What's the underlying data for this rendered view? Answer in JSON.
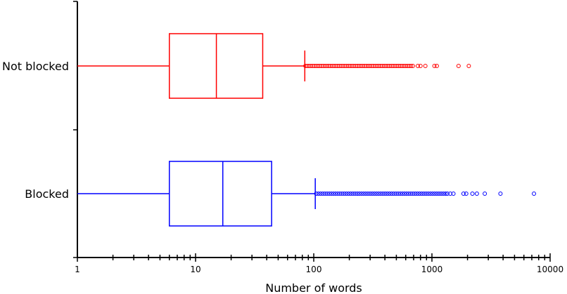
{
  "chart_data": {
    "type": "boxplot",
    "orientation": "horizontal",
    "xlabel": "Number of words",
    "x_scale": "log",
    "xlim": [
      1,
      10000
    ],
    "x_ticks": [
      1,
      10,
      100,
      1000,
      10000
    ],
    "x_tick_labels": [
      "1",
      "10",
      "100",
      "1000",
      "10000"
    ],
    "grid": false,
    "categories": [
      "Not blocked",
      "Blocked"
    ],
    "series": [
      {
        "category": "Not blocked",
        "color": "#ff0000",
        "whisker_low": 1,
        "q1": 6,
        "median": 15,
        "q3": 37,
        "whisker_high": 84,
        "outlier_range": [
          85,
          690
        ],
        "outliers": [
          760,
          800,
          880,
          1050,
          1100,
          1680,
          2050
        ]
      },
      {
        "category": "Blocked",
        "color": "#0000ff",
        "whisker_low": 1,
        "q1": 6,
        "median": 17,
        "q3": 44,
        "whisker_high": 103,
        "outlier_range": [
          105,
          1300
        ],
        "outliers": [
          1350,
          1430,
          1520,
          1850,
          1950,
          2200,
          2400,
          2800,
          3800,
          7300
        ]
      }
    ]
  }
}
